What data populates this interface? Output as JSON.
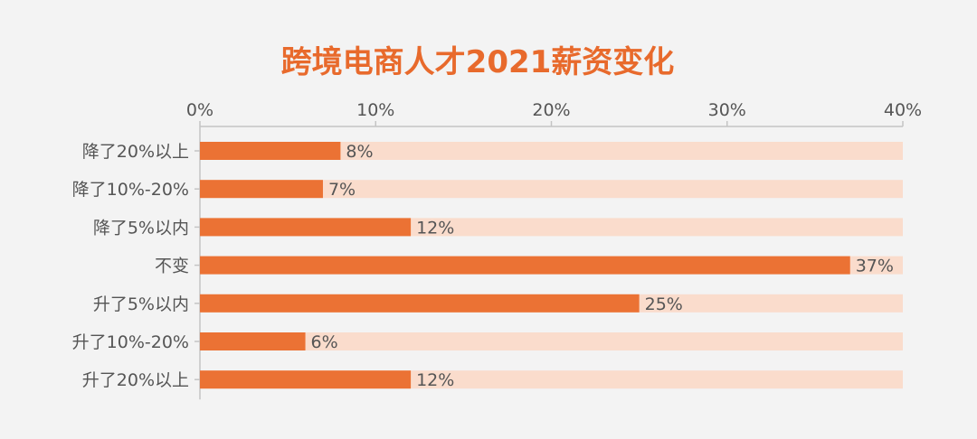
{
  "chart_data": {
    "type": "bar",
    "orientation": "horizontal",
    "title": "跨境电商人才2021薪资变化",
    "categories": [
      "降了20%以上",
      "降了10%-20%",
      "降了5%以内",
      "不变",
      "升了5%以内",
      "升了10%-20%",
      "升了20%以上"
    ],
    "values": [
      8,
      7,
      12,
      37,
      25,
      6,
      12
    ],
    "value_labels": [
      "8%",
      "7%",
      "12%",
      "37%",
      "25%",
      "6%",
      "12%"
    ],
    "xlim": [
      0,
      40
    ],
    "xticks": [
      0,
      10,
      20,
      30,
      40
    ],
    "xtick_labels": [
      "0%",
      "10%",
      "20%",
      "30%",
      "40%"
    ],
    "xaxis_position": "top",
    "grid": false,
    "legend": "none",
    "colors": {
      "title": "#e86a2c",
      "bar": "#eb7234",
      "track": "#fadccc",
      "text": "#555555",
      "axis": "#c4c4c4"
    }
  }
}
